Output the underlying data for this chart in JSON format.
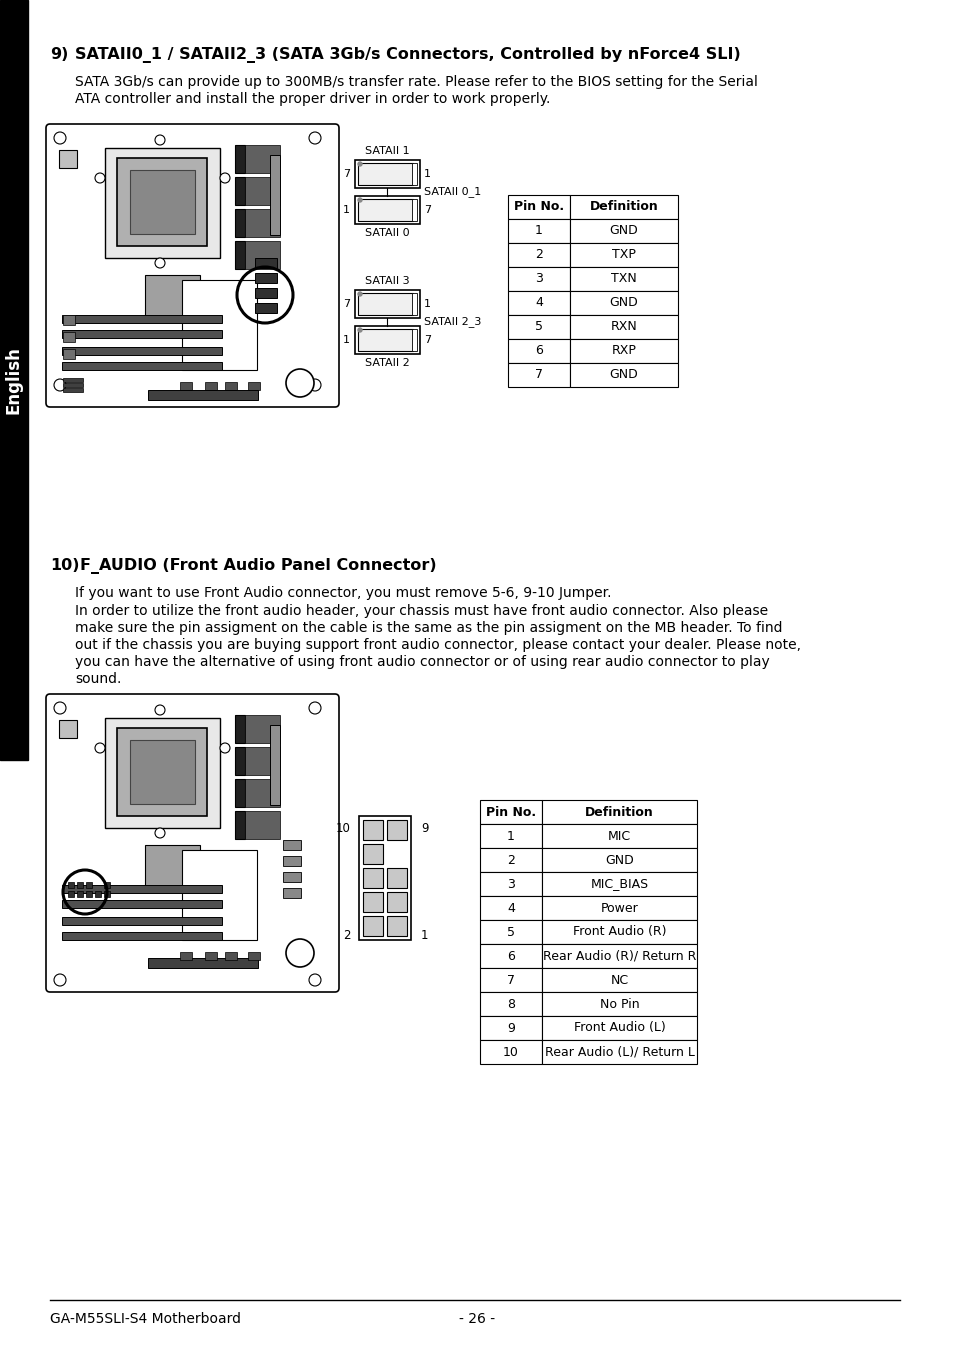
{
  "bg_color": "#ffffff",
  "sidebar_color": "#000000",
  "sidebar_text": "English",
  "section9_num": "9)",
  "section9_title": "SATAII0_1 / SATAII2_3 (SATA 3Gb/s Connectors, Controlled by nForce4 SLI)",
  "section9_body": "SATA 3Gb/s can provide up to 300MB/s transfer rate. Please refer to the BIOS setting for the Serial\nATA controller and install the proper driver in order to work properly.",
  "section10_num": "10)",
  "section10_title": "F_AUDIO (Front Audio Panel Connector)",
  "section10_body1": "If you want to use Front Audio connector, you must remove 5-6, 9-10 Jumper.",
  "section10_body2": "In order to utilize the front audio header, your chassis must have front audio connector. Also please\nmake sure the pin assigment on the cable is the same as the pin assigment on the MB header. To find\nout if the chassis you are buying support front audio connector, please contact your dealer. Please note,\nyou can have the alternative of using front audio connector or of using rear audio connector to play\nsound.",
  "footer_left": "GA-M55SLI-S4 Motherboard",
  "footer_center": "- 26 -",
  "sata_table_headers": [
    "Pin No.",
    "Definition"
  ],
  "sata_table_rows": [
    [
      "1",
      "GND"
    ],
    [
      "2",
      "TXP"
    ],
    [
      "3",
      "TXN"
    ],
    [
      "4",
      "GND"
    ],
    [
      "5",
      "RXN"
    ],
    [
      "6",
      "RXP"
    ],
    [
      "7",
      "GND"
    ]
  ],
  "audio_table_headers": [
    "Pin No.",
    "Definition"
  ],
  "audio_table_rows": [
    [
      "1",
      "MIC"
    ],
    [
      "2",
      "GND"
    ],
    [
      "3",
      "MIC_BIAS"
    ],
    [
      "4",
      "Power"
    ],
    [
      "5",
      "Front Audio (R)"
    ],
    [
      "6",
      "Rear Audio (R)/ Return R"
    ],
    [
      "7",
      "NC"
    ],
    [
      "8",
      "No Pin"
    ],
    [
      "9",
      "Front Audio (L)"
    ],
    [
      "10",
      "Rear Audio (L)/ Return L"
    ]
  ]
}
